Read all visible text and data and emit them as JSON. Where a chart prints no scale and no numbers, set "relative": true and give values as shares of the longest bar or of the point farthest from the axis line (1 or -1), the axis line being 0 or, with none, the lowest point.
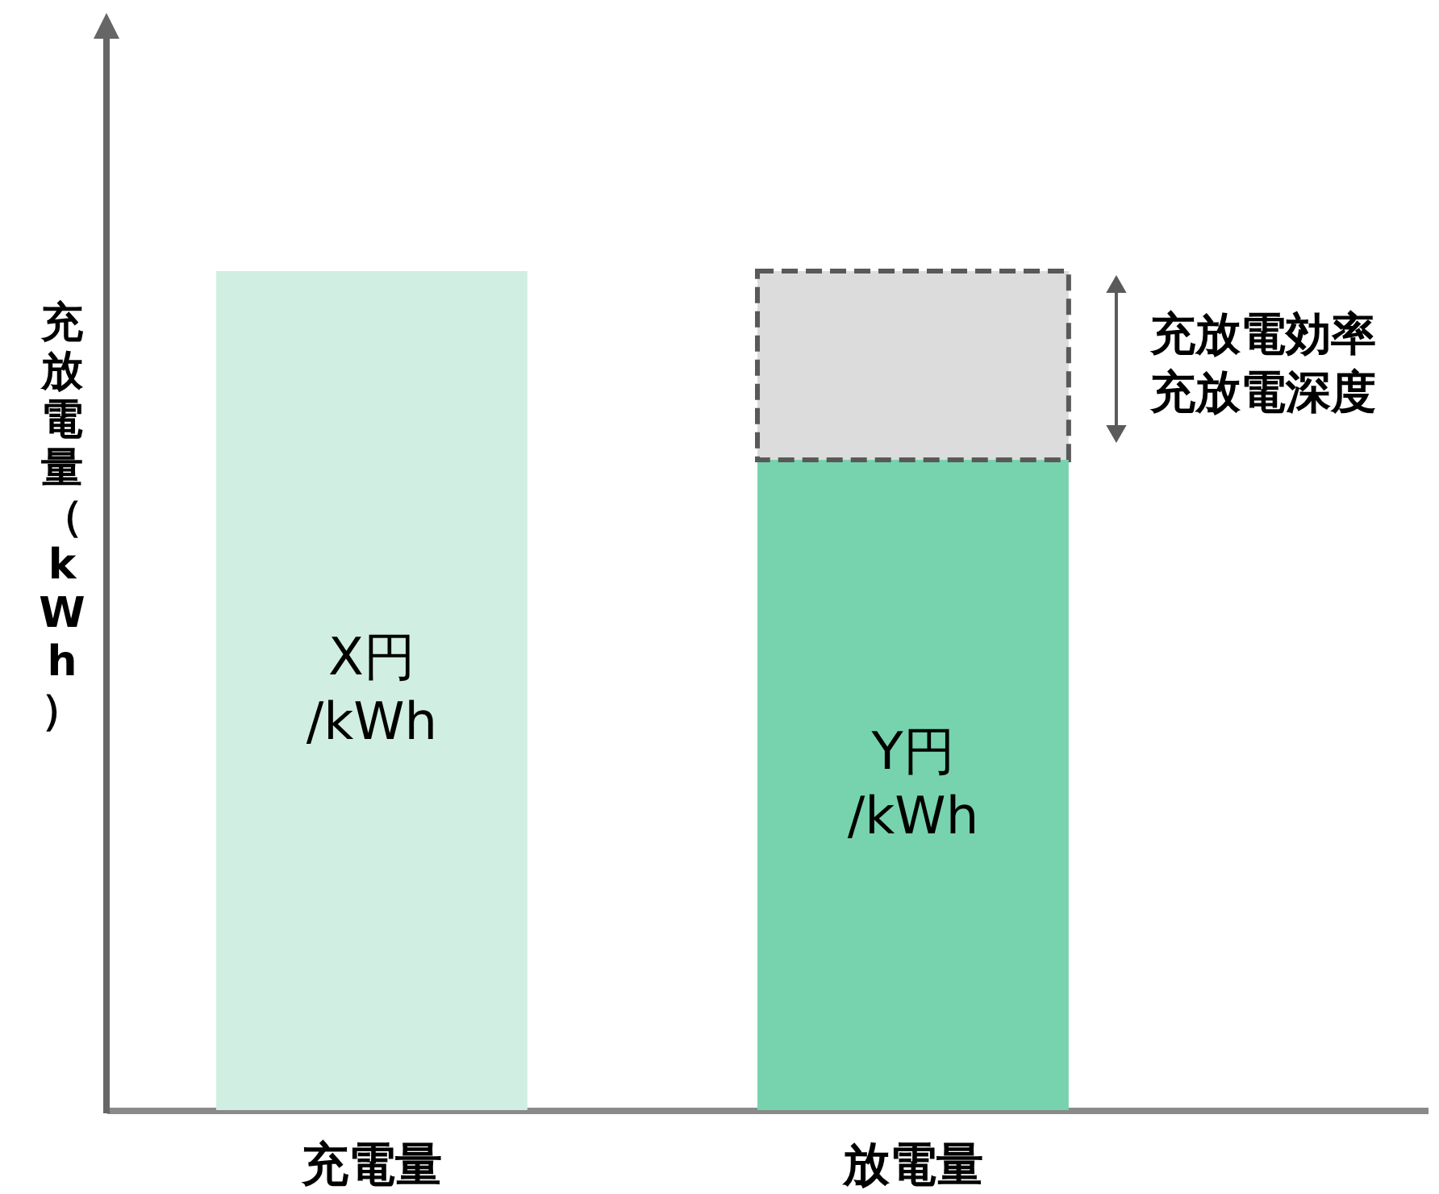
{
  "chart_data": {
    "type": "bar",
    "relative": true,
    "stacked": true,
    "ylabel": "充放電量（kWh）",
    "categories": [
      "充電量",
      "放電量"
    ],
    "series": [
      {
        "color": "#d0efe2",
        "values": [
          1,
          null
        ]
      },
      {
        "color": "#76d3ae",
        "values": [
          null,
          0.775
        ]
      },
      {
        "color": "#dcdcdc",
        "values": [
          null,
          0.225
        ],
        "line_style": "dashed"
      }
    ],
    "annotations": [
      "X円\n/kWh",
      "Y円\n/kWh",
      "充放電効率充放電深度"
    ]
  }
}
